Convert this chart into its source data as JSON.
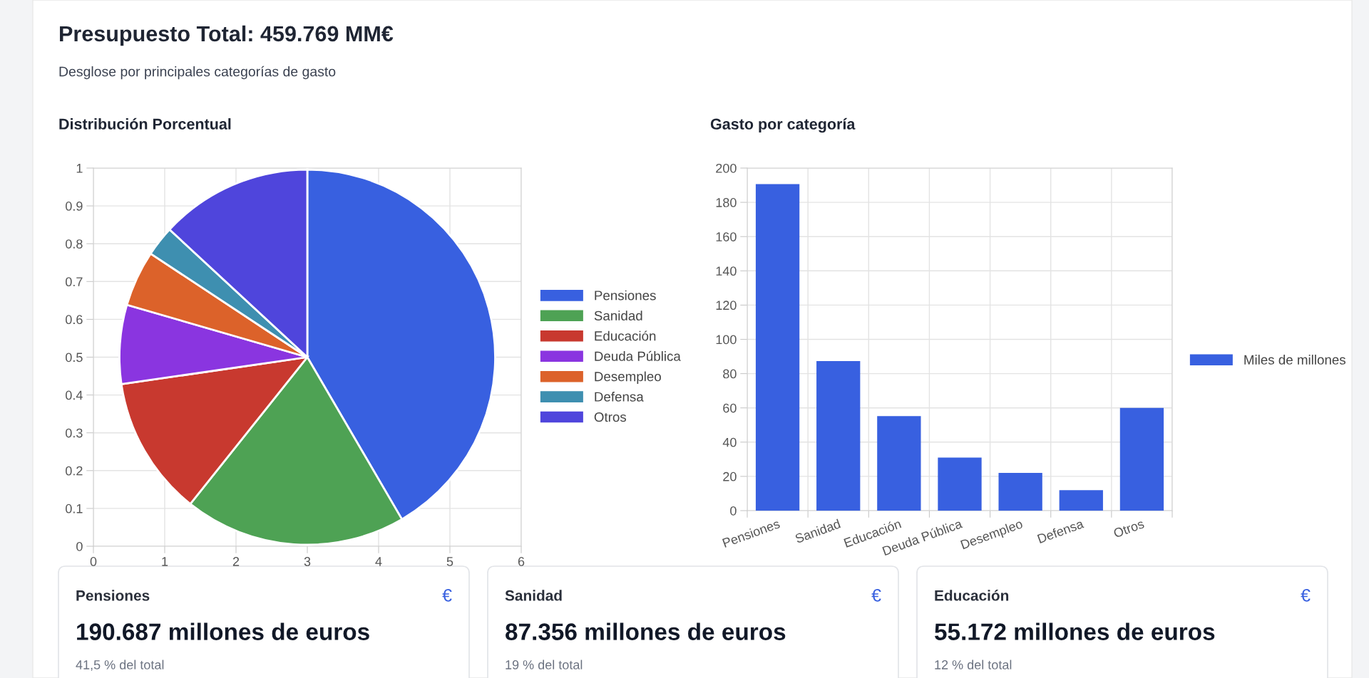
{
  "chart_data": [
    {
      "type": "other",
      "title": "Presupuesto Total: 459.769 MM€",
      "subtitle": "Desglose por principales categorías de gasto"
    },
    {
      "type": "pie",
      "title": "Distribución Porcentual",
      "categories": [
        "Pensiones",
        "Sanidad",
        "Educación",
        "Deuda Pública",
        "Desempleo",
        "Defensa",
        "Otros"
      ],
      "values": [
        41.6,
        19.1,
        12.0,
        6.8,
        4.8,
        2.6,
        13.1
      ],
      "colors": [
        "#3860e0",
        "#4ea254",
        "#c8392f",
        "#8a35e0",
        "#dc622a",
        "#3e8fb0",
        "#4f45dc"
      ],
      "legend": "right"
    },
    {
      "type": "scatter",
      "xlim": [
        0,
        6
      ],
      "xticks": [
        0,
        1,
        2,
        3,
        4,
        5,
        6
      ],
      "ylim": [
        0,
        1
      ],
      "yticks": [
        0,
        0.1,
        0.2,
        0.3,
        0.4,
        0.5,
        0.6,
        0.7,
        0.8,
        0.9,
        1
      ],
      "grid": true
    },
    {
      "type": "bar",
      "title": "Gasto por categoría",
      "categories": [
        "Pensiones",
        "Sanidad",
        "Educación",
        "Deuda Pública",
        "Desempleo",
        "Defensa",
        "Otros"
      ],
      "series": [
        {
          "name": "Miles de millones",
          "color": "#3860e0",
          "values": [
            190.687,
            87.356,
            55.172,
            31,
            22,
            12,
            60
          ]
        }
      ],
      "ylim": [
        0,
        200
      ],
      "yticks": [
        0,
        20,
        40,
        60,
        80,
        100,
        120,
        140,
        160,
        180,
        200
      ],
      "grid": true,
      "legend": "right"
    },
    {
      "type": "other",
      "annotations": [
        "Pensiones",
        "€",
        "190.687 millones de euros",
        "41,5 % del total",
        "Sanidad",
        "€",
        "87.356 millones de euros",
        "19 % del total",
        "Educación",
        "€",
        "55.172 millones de euros",
        "12 % del total"
      ]
    }
  ]
}
